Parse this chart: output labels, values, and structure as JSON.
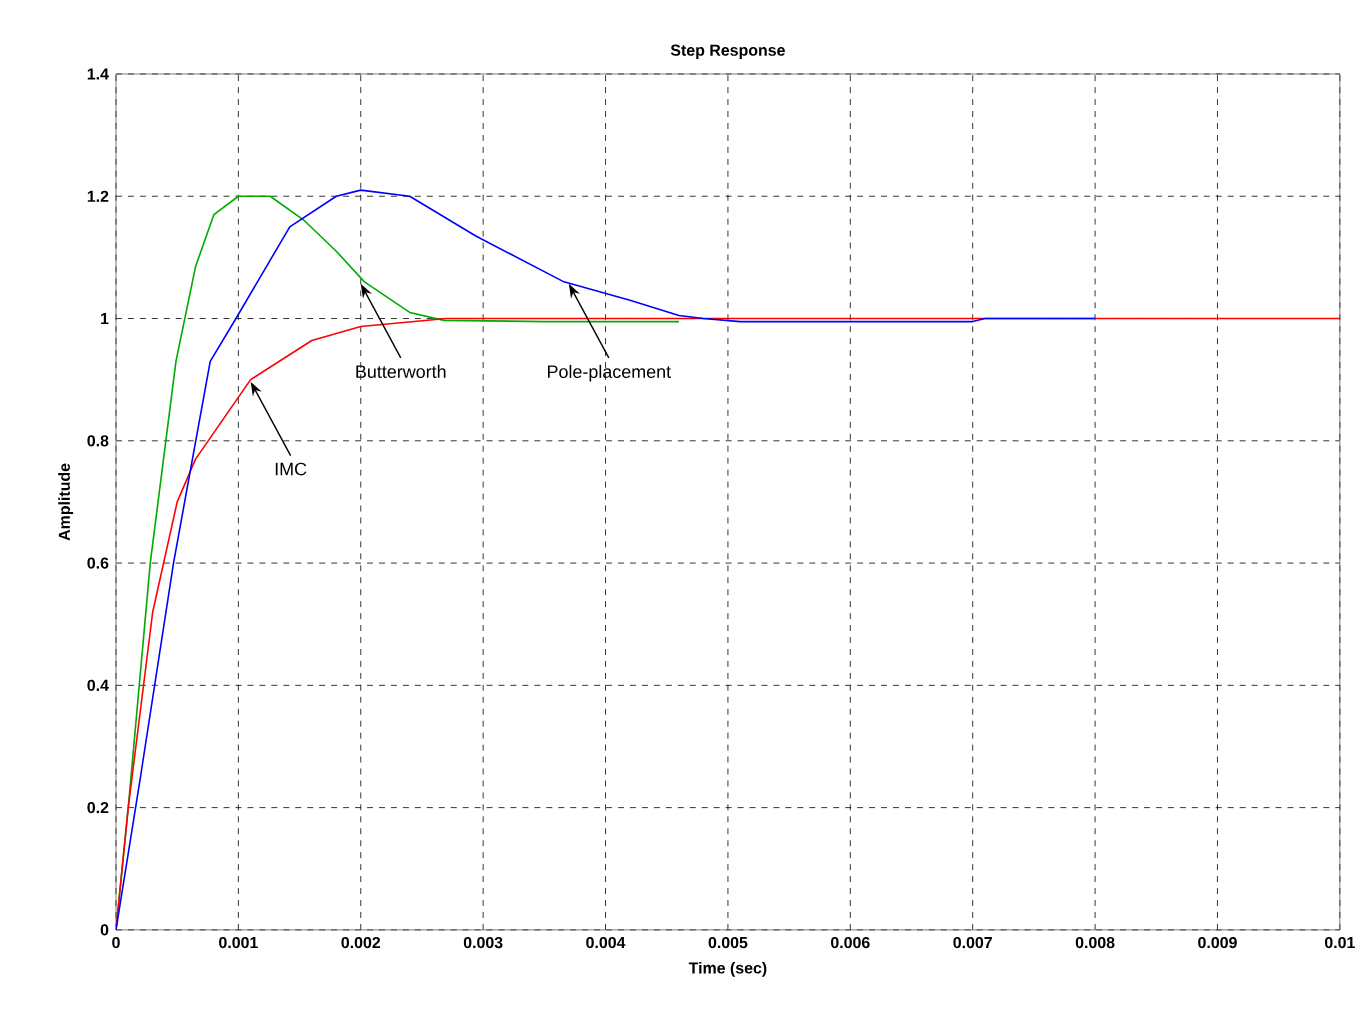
{
  "chart_data": {
    "type": "line",
    "title": "Step Response",
    "xlabel": "Time (sec)",
    "ylabel": "Amplitude",
    "xlim": [
      0,
      0.01
    ],
    "ylim": [
      0,
      1.4
    ],
    "xticks": [
      0,
      0.001,
      0.002,
      0.003,
      0.004,
      0.005,
      0.006,
      0.007,
      0.008,
      0.009,
      0.01
    ],
    "yticks": [
      0,
      0.2,
      0.4,
      0.6,
      0.8,
      1,
      1.2,
      1.4
    ],
    "grid": true,
    "series": [
      {
        "color": "#00aa00",
        "x": [
          0,
          0.0001,
          0.00028,
          0.00049,
          0.00065,
          0.0008,
          0.001,
          0.00126,
          0.00154,
          0.0018,
          0.00203,
          0.0024,
          0.00268,
          0.0035,
          0.0046
        ],
        "values": [
          0,
          0.2,
          0.6,
          0.93,
          1.085,
          1.17,
          1.2,
          1.2,
          1.16,
          1.11,
          1.06,
          1.01,
          0.997,
          0.995,
          0.995
        ]
      },
      {
        "color": "#ff0000",
        "x": [
          0,
          0.0001,
          0.0003,
          0.0005,
          0.00065,
          0.0011,
          0.0016,
          0.002,
          0.0027,
          0.005,
          0.01
        ],
        "values": [
          0,
          0.2,
          0.52,
          0.7,
          0.77,
          0.9,
          0.964,
          0.987,
          1.0,
          1.0,
          1.0
        ]
      },
      {
        "color": "#0000ff",
        "x": [
          0,
          0.0002,
          0.00047,
          0.00077,
          0.00098,
          0.00142,
          0.0018,
          0.002,
          0.0024,
          0.00294,
          0.00366,
          0.0042,
          0.0046,
          0.0048,
          0.0051,
          0.007,
          0.0071,
          0.008
        ],
        "values": [
          0,
          0.25,
          0.6,
          0.93,
          1.0,
          1.15,
          1.2,
          1.21,
          1.2,
          1.135,
          1.06,
          1.03,
          1.005,
          1.0,
          0.995,
          0.995,
          1.0,
          1.0
        ]
      }
    ],
    "annotations": [
      {
        "text": "Butterworth",
        "x": 0.002,
        "y": 1.06
      },
      {
        "text": "Pole-placement",
        "x": 0.0037,
        "y": 1.06
      },
      {
        "text": "IMC",
        "x": 0.0011,
        "y": 0.9
      }
    ]
  }
}
